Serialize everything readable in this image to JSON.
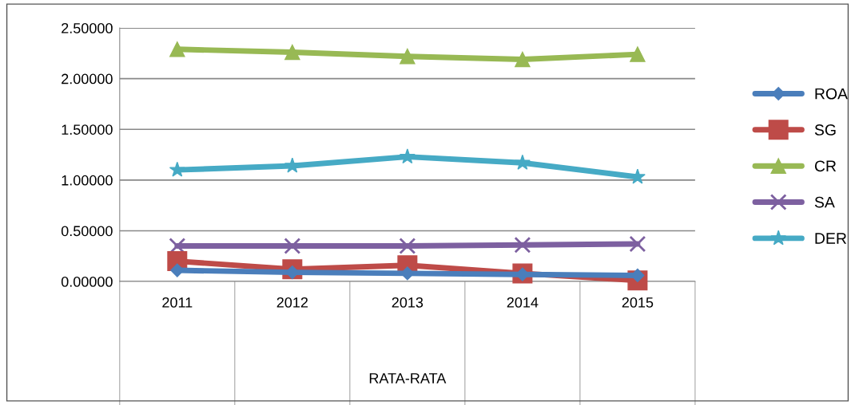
{
  "chart_data": {
    "type": "line",
    "categories": [
      "2011",
      "2012",
      "2013",
      "2014",
      "2015"
    ],
    "xlabel": "RATA-RATA",
    "ylim": [
      0,
      2.5
    ],
    "yticks": [
      {
        "value": 0,
        "label": "0.00000"
      },
      {
        "value": 0.5,
        "label": "0.50000"
      },
      {
        "value": 1,
        "label": "1.00000"
      },
      {
        "value": 1.5,
        "label": "1.50000"
      },
      {
        "value": 2,
        "label": "2.00000"
      },
      {
        "value": 2.5,
        "label": "2.50000"
      }
    ],
    "grid": "y",
    "legend": "right",
    "line_style": "solid",
    "series": [
      {
        "name": "ROA",
        "color": "#4a7ebb",
        "marker": "diamond",
        "values": [
          0.11,
          0.09,
          0.08,
          0.07,
          0.06
        ]
      },
      {
        "name": "SG",
        "color": "#be4b48",
        "marker": "square",
        "values": [
          0.2,
          0.12,
          0.16,
          0.08,
          0.01
        ]
      },
      {
        "name": "CR",
        "color": "#98b954",
        "marker": "triangle",
        "values": [
          2.29,
          2.26,
          2.22,
          2.19,
          2.24
        ]
      },
      {
        "name": "SA",
        "color": "#7d60a0",
        "marker": "cross",
        "values": [
          0.35,
          0.35,
          0.35,
          0.36,
          0.37
        ]
      },
      {
        "name": "DER",
        "color": "#46aac5",
        "marker": "star",
        "values": [
          1.1,
          1.14,
          1.23,
          1.17,
          1.03
        ]
      }
    ]
  }
}
